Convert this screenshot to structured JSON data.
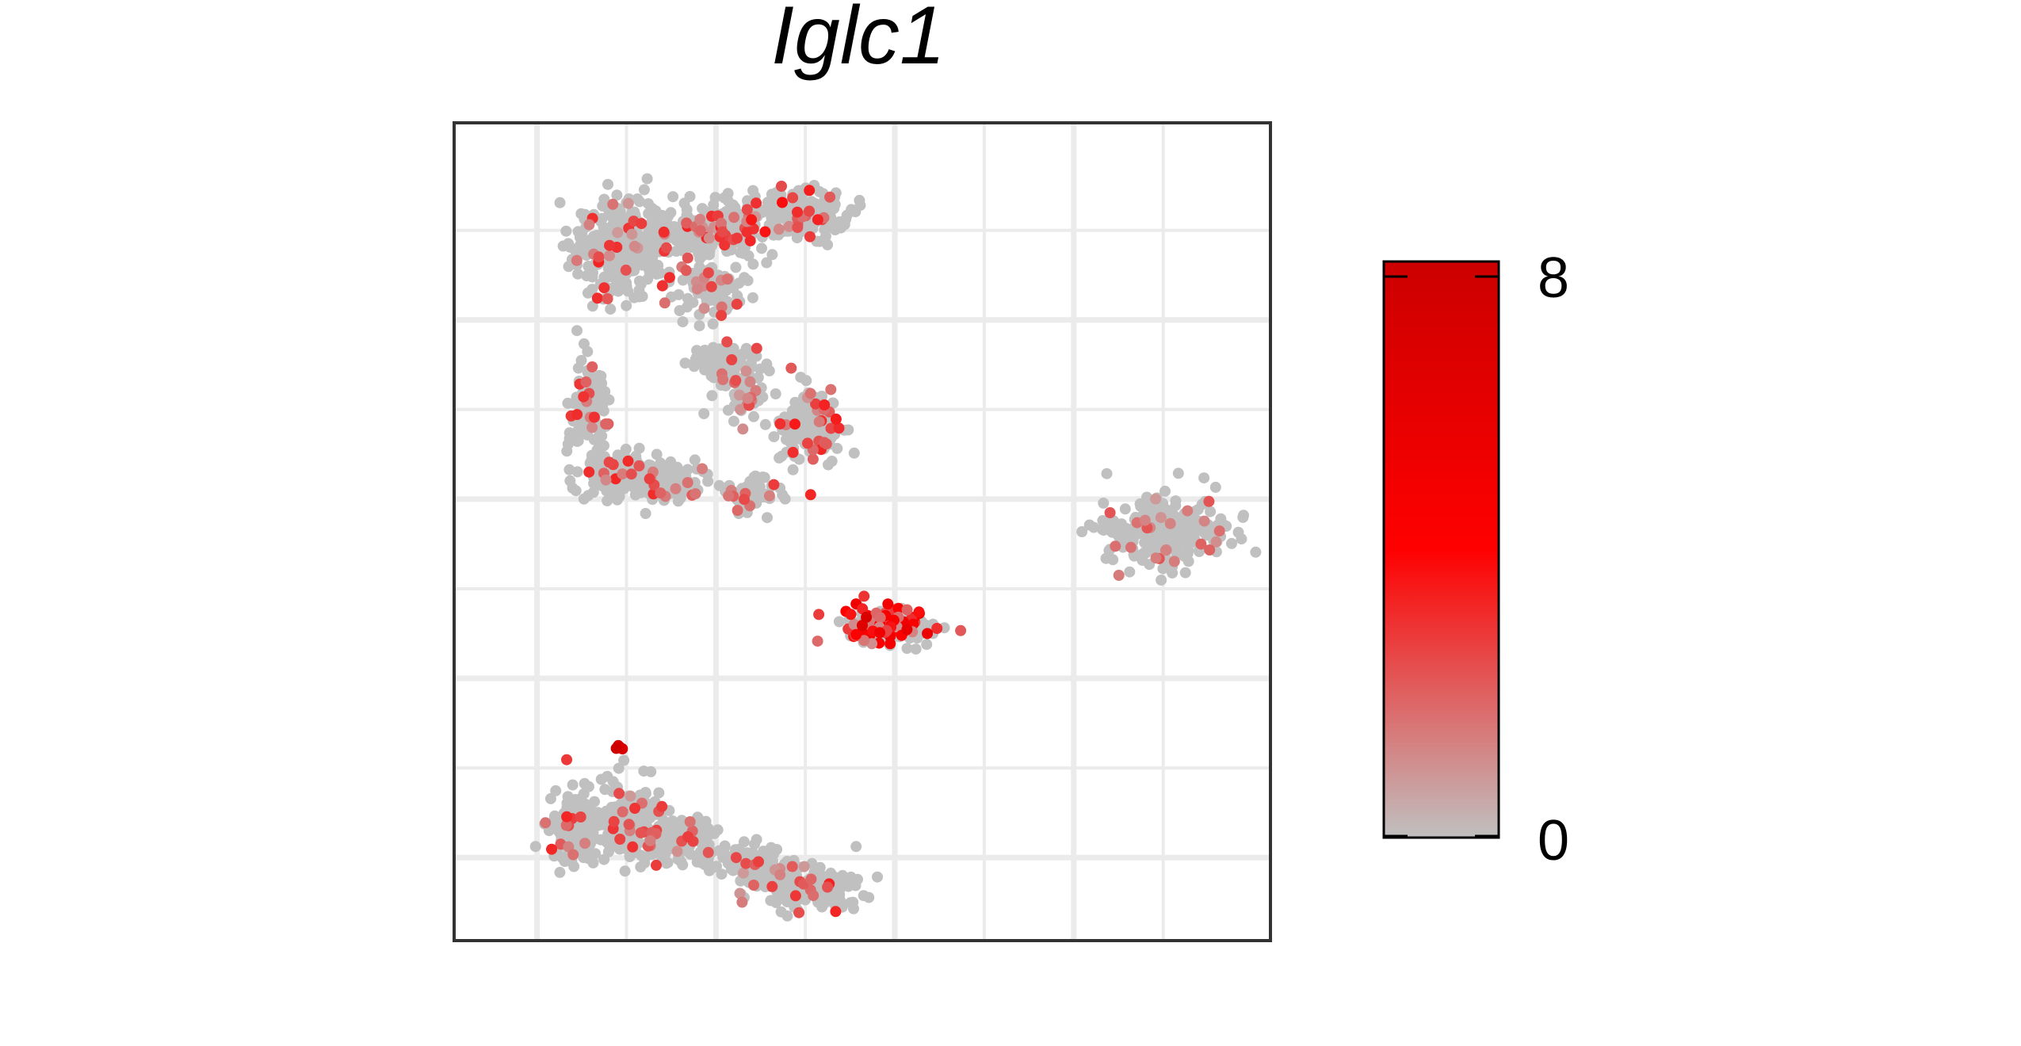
{
  "chart_data": {
    "type": "scatter",
    "title": "Iglc1",
    "xlabel": "",
    "ylabel": "",
    "xlim": [
      -10,
      10
    ],
    "ylim": [
      -10,
      10
    ],
    "grid": true,
    "axes_ticks_visible": false,
    "point_color_low": "#c0c0c0",
    "point_color_mid": "#ff0000",
    "point_color_high": "#cc0000",
    "legend": {
      "placement": "right",
      "type": "colorbar",
      "min_label": "0",
      "max_label": "8",
      "min": 0,
      "max": 8
    },
    "clusters": [
      {
        "cx": -5.9,
        "cy": 7.0,
        "rx": 1.2,
        "ry": 1.2,
        "n": 320,
        "expr_frac": 0.08,
        "expr_max": 2.5
      },
      {
        "cx": -3.6,
        "cy": 7.4,
        "rx": 1.4,
        "ry": 0.6,
        "n": 220,
        "expr_frac": 0.1,
        "expr_max": 2.5
      },
      {
        "cx": -1.6,
        "cy": 7.8,
        "rx": 1.3,
        "ry": 0.6,
        "n": 200,
        "expr_frac": 0.12,
        "expr_max": 3.0
      },
      {
        "cx": -3.8,
        "cy": 6.0,
        "rx": 0.9,
        "ry": 0.6,
        "n": 90,
        "expr_frac": 0.08,
        "expr_max": 2.0
      },
      {
        "cx": -6.7,
        "cy": 3.1,
        "rx": 0.5,
        "ry": 1.1,
        "n": 110,
        "expr_frac": 0.12,
        "expr_max": 2.5
      },
      {
        "cx": -6.0,
        "cy": 1.4,
        "rx": 0.9,
        "ry": 0.5,
        "n": 120,
        "expr_frac": 0.1,
        "expr_max": 2.5
      },
      {
        "cx": -4.8,
        "cy": 1.2,
        "rx": 0.9,
        "ry": 0.5,
        "n": 130,
        "expr_frac": 0.08,
        "expr_max": 2.5
      },
      {
        "cx": -3.4,
        "cy": 4.2,
        "rx": 0.8,
        "ry": 0.4,
        "n": 80,
        "expr_frac": 0.08,
        "expr_max": 2.0
      },
      {
        "cx": -2.9,
        "cy": 3.5,
        "rx": 0.6,
        "ry": 0.8,
        "n": 70,
        "expr_frac": 0.1,
        "expr_max": 2.0
      },
      {
        "cx": -1.3,
        "cy": 2.6,
        "rx": 0.8,
        "ry": 1.0,
        "n": 170,
        "expr_frac": 0.12,
        "expr_max": 2.8
      },
      {
        "cx": -2.7,
        "cy": 0.9,
        "rx": 0.7,
        "ry": 0.5,
        "n": 60,
        "expr_frac": 0.1,
        "expr_max": 2.0
      },
      {
        "cx": 7.5,
        "cy": 0.0,
        "rx": 1.5,
        "ry": 0.8,
        "n": 260,
        "expr_frac": 0.06,
        "expr_max": 2.0
      },
      {
        "cx": 0.6,
        "cy": -2.3,
        "rx": 1.1,
        "ry": 0.45,
        "n": 170,
        "expr_frac": 0.45,
        "expr_max": 4.5
      },
      {
        "cx": -7.1,
        "cy": -7.3,
        "rx": 0.6,
        "ry": 0.9,
        "n": 150,
        "expr_frac": 0.08,
        "expr_max": 2.5
      },
      {
        "cx": -5.7,
        "cy": -7.1,
        "rx": 0.8,
        "ry": 0.9,
        "n": 180,
        "expr_frac": 0.08,
        "expr_max": 2.5
      },
      {
        "cx": -4.4,
        "cy": -7.6,
        "rx": 0.9,
        "ry": 0.5,
        "n": 110,
        "expr_frac": 0.08,
        "expr_max": 2.0
      },
      {
        "cx": -2.7,
        "cy": -8.2,
        "rx": 0.9,
        "ry": 0.5,
        "n": 110,
        "expr_frac": 0.08,
        "expr_max": 2.0
      },
      {
        "cx": -1.3,
        "cy": -8.8,
        "rx": 1.2,
        "ry": 0.5,
        "n": 170,
        "expr_frac": 0.08,
        "expr_max": 2.5
      }
    ],
    "highlight_points": [
      {
        "x": -5.95,
        "y": -5.3,
        "value": 8
      },
      {
        "x": -6.0,
        "y": -5.25,
        "value": 7.5
      },
      {
        "x": -5.9,
        "y": -5.33,
        "value": 7
      },
      {
        "x": -6.05,
        "y": -5.32,
        "value": 7.8
      },
      {
        "x": 1.1,
        "y": -2.4,
        "value": 6
      },
      {
        "x": 0.1,
        "y": -2.1,
        "value": 7
      },
      {
        "x": 1.6,
        "y": -2.5,
        "value": 5.5
      },
      {
        "x": 0.0,
        "y": -2.3,
        "value": 6.5
      }
    ]
  }
}
